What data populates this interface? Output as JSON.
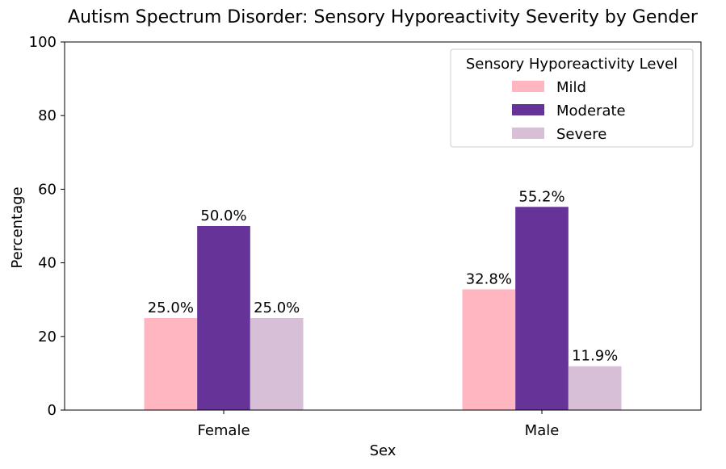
{
  "chart_data": {
    "type": "bar",
    "title": "Autism Spectrum Disorder: Sensory Hyporeactivity Severity by Gender",
    "xlabel": "Sex",
    "ylabel": "Percentage",
    "ylim": [
      0,
      100
    ],
    "yticks": [
      0,
      20,
      40,
      60,
      80,
      100
    ],
    "grid": false,
    "categories": [
      "Female",
      "Male"
    ],
    "legend": {
      "title": "Sensory Hyporeactivity Level",
      "placement": "top-right"
    },
    "series": [
      {
        "name": "Mild",
        "color": "#FFB6C1",
        "values": [
          25.0,
          32.8
        ],
        "labels": [
          "25.0%",
          "32.8%"
        ]
      },
      {
        "name": "Moderate",
        "color": "#663399",
        "values": [
          50.0,
          55.2
        ],
        "labels": [
          "50.0%",
          "55.2%"
        ]
      },
      {
        "name": "Severe",
        "color": "#D8BFD8",
        "values": [
          25.0,
          11.9
        ],
        "labels": [
          "25.0%",
          "11.9%"
        ]
      }
    ]
  }
}
